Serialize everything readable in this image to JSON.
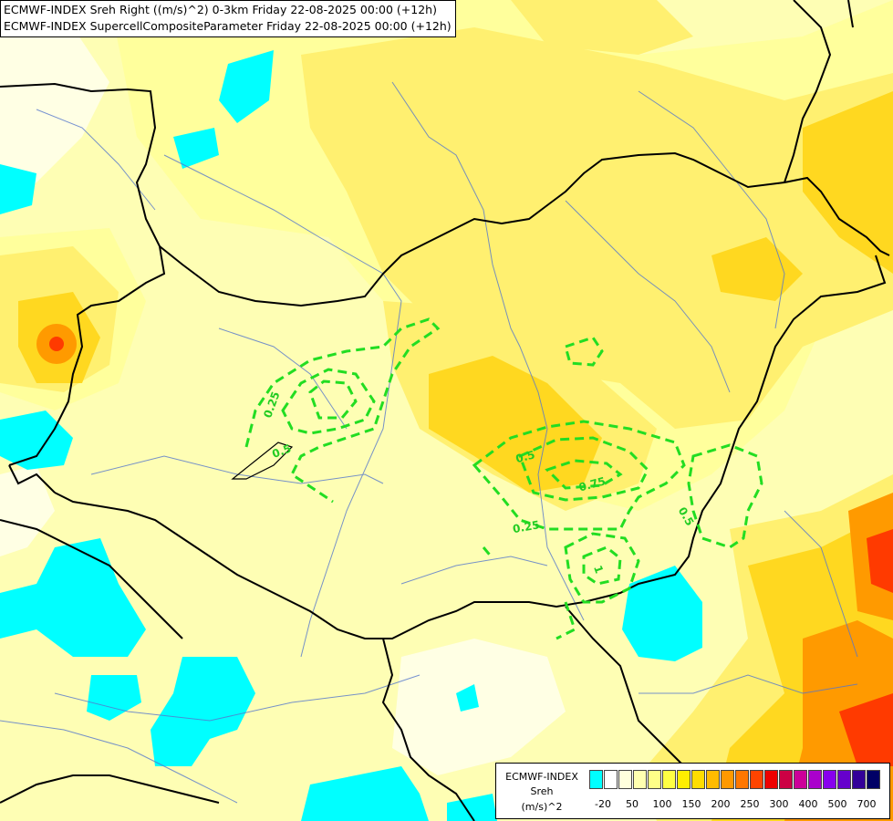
{
  "header": {
    "line1": "ECMWF-INDEX Sreh Right ((m/s)^2) 0-3km Friday 22-08-2025 00:00 (+12h)",
    "line2": "ECMWF-INDEX SupercellCompositeParameter Friday 22-08-2025 00:00 (+12h)"
  },
  "contours": {
    "labels": [
      "0.25",
      "0.5",
      "0.5",
      "0.75",
      "0.25",
      "0.5",
      "1"
    ],
    "color": "#22dd22"
  },
  "legend": {
    "title": "ECMWF-INDEX",
    "variable": "Sreh",
    "unit": "(m/s)^2",
    "ticks": [
      "-20",
      "50",
      "100",
      "150",
      "200",
      "250",
      "300",
      "400",
      "500",
      "700"
    ],
    "colors": [
      "#00ffff",
      "#ffffff",
      "#ffffdd",
      "#ffffb0",
      "#ffff88",
      "#ffff44",
      "#ffee00",
      "#ffdd00",
      "#ffbb00",
      "#ff9900",
      "#ff7700",
      "#ff4400",
      "#ee0000",
      "#cc0044",
      "#cc0099",
      "#aa00cc",
      "#8800ee",
      "#6600cc",
      "#330099",
      "#000066"
    ]
  }
}
